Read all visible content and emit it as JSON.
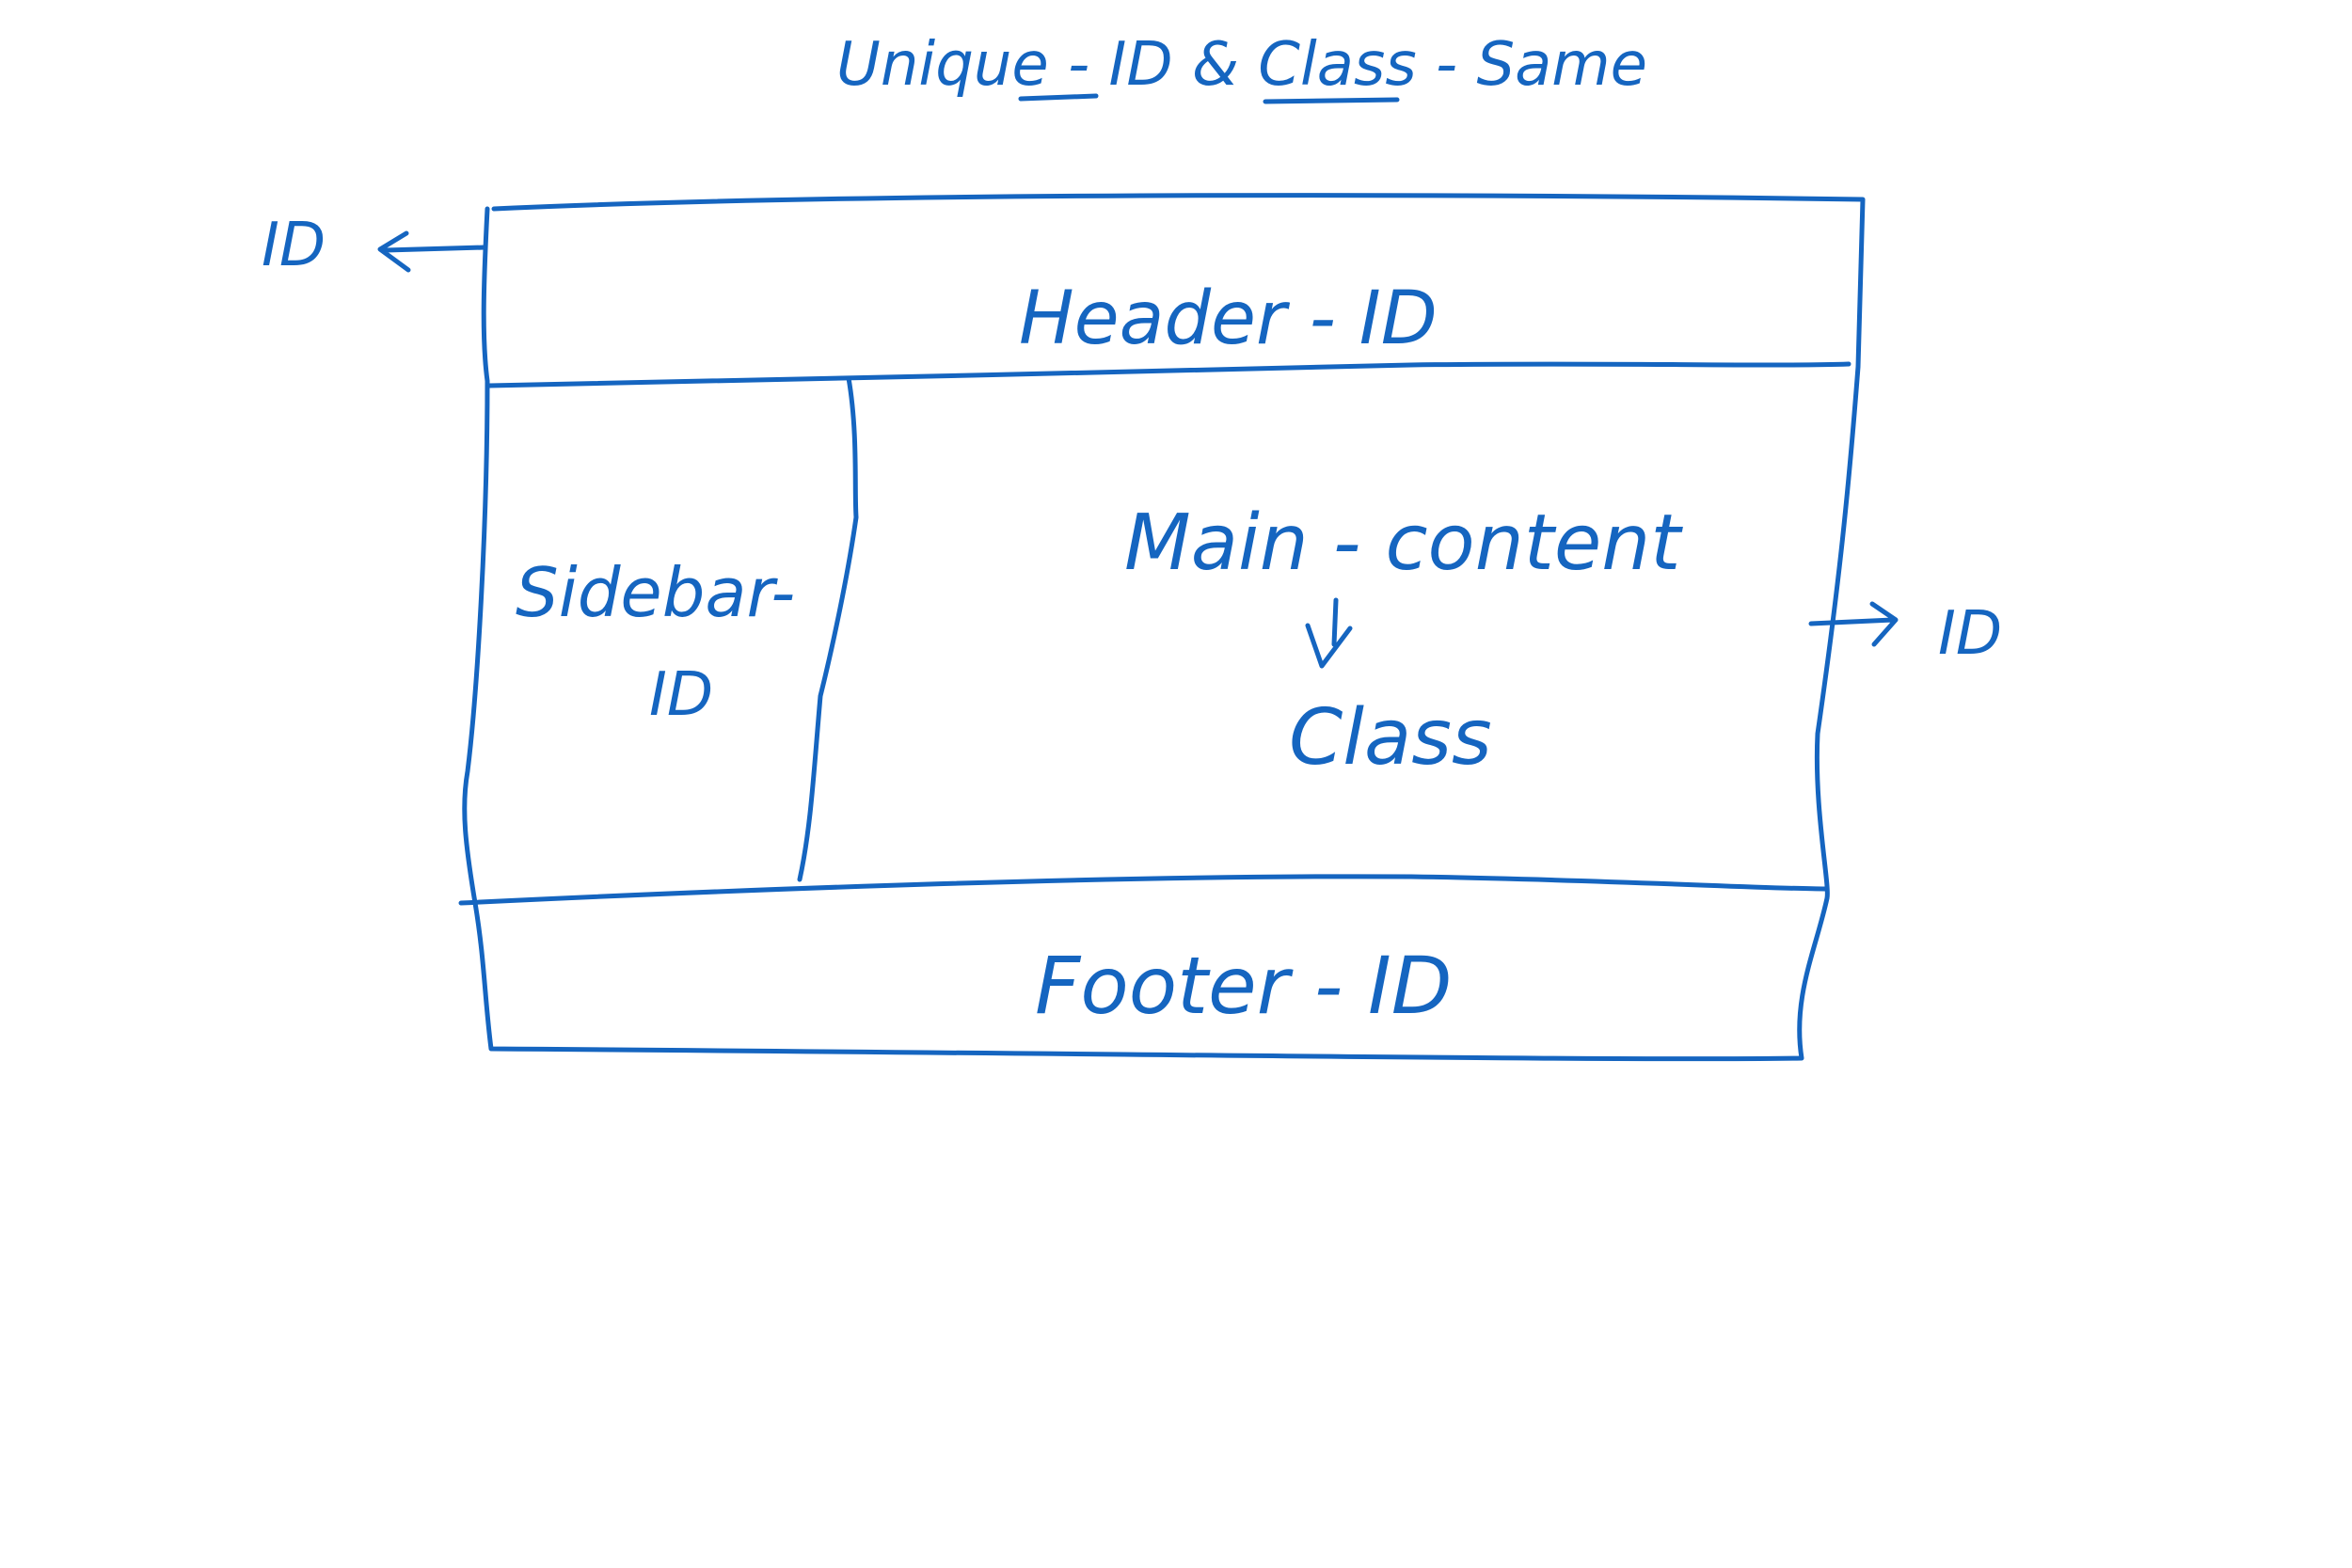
{
  "title": {
    "part1": "Unique - ",
    "part2": "ID",
    "part3": " & ",
    "part4": "Class",
    "part5": " - Same"
  },
  "labels": {
    "left_id": "ID",
    "header": "Header - ID",
    "sidebar_line1": "Sidebar-",
    "sidebar_line2": "ID",
    "main_content": "Main - content",
    "main_class": "Class",
    "right_id": "ID",
    "footer": "Footer - ID"
  },
  "colors": {
    "ink": "#1565c0",
    "background": "#ffffff"
  }
}
